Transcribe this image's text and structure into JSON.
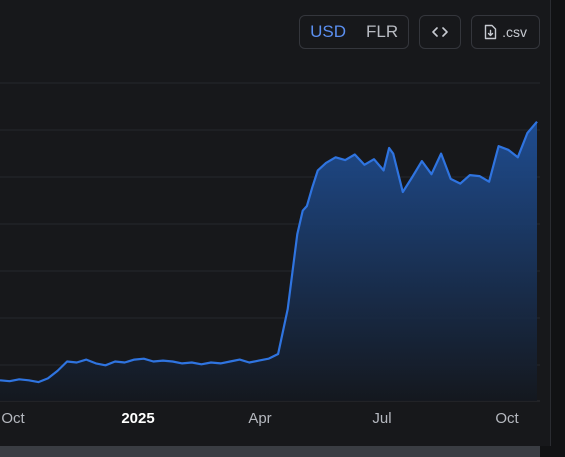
{
  "toolbar": {
    "currency_options": [
      "USD",
      "FLR"
    ],
    "active_currency": "USD",
    "embed_icon": "code-icon",
    "csv_icon": "file-download-icon",
    "csv_label": ".csv"
  },
  "colors": {
    "line": "#2f74e0",
    "area_top": "#1f4f96",
    "area_bottom": "#14181f",
    "background": "#17181b",
    "grid": "#26282d",
    "accent": "#5b8ff0"
  },
  "chart_data": {
    "type": "area",
    "title": "",
    "xlabel": "",
    "ylabel": "",
    "x_ticks": [
      "Oct",
      "2025",
      "Apr",
      "Jul",
      "Oct"
    ],
    "x_ticks_bold": [
      "2025"
    ],
    "grid": true,
    "series": [
      {
        "x": [
          "2024-09-20",
          "2024-09-27",
          "2024-10-04",
          "2024-10-11",
          "2024-10-18",
          "2024-10-25",
          "2024-11-01",
          "2024-11-08",
          "2024-11-15",
          "2024-11-22",
          "2024-11-29",
          "2024-12-06",
          "2024-12-13",
          "2024-12-20",
          "2024-12-27",
          "2025-01-03",
          "2025-01-10",
          "2025-01-17",
          "2025-01-24",
          "2025-01-31",
          "2025-02-07",
          "2025-02-14",
          "2025-02-21",
          "2025-02-28",
          "2025-03-07",
          "2025-03-14",
          "2025-03-21",
          "2025-03-28",
          "2025-04-04",
          "2025-04-11",
          "2025-04-18",
          "2025-04-25",
          "2025-04-29",
          "2025-05-02",
          "2025-05-06",
          "2025-05-10",
          "2025-05-16",
          "2025-05-23",
          "2025-05-30",
          "2025-06-06",
          "2025-06-13",
          "2025-06-20",
          "2025-06-27",
          "2025-07-01",
          "2025-07-04",
          "2025-07-11",
          "2025-07-18",
          "2025-07-25",
          "2025-08-01",
          "2025-08-08",
          "2025-08-15",
          "2025-08-22",
          "2025-08-29",
          "2025-09-05",
          "2025-09-12",
          "2025-09-19",
          "2025-09-26",
          "2025-10-03",
          "2025-10-10",
          "2025-10-17"
        ],
        "values": [
          0.4,
          0.3,
          0.5,
          0.4,
          0.2,
          0.6,
          1.4,
          2.4,
          2.3,
          2.6,
          2.2,
          2.0,
          2.4,
          2.3,
          2.6,
          2.7,
          2.4,
          2.5,
          2.4,
          2.2,
          2.3,
          2.1,
          2.3,
          2.2,
          2.4,
          2.6,
          2.3,
          2.5,
          2.7,
          3.2,
          8.0,
          16.0,
          18.5,
          19.0,
          21.0,
          22.8,
          23.6,
          24.2,
          23.9,
          24.5,
          23.4,
          24.0,
          22.8,
          25.2,
          24.6,
          20.5,
          22.1,
          23.8,
          22.4,
          24.6,
          21.9,
          21.4,
          22.3,
          22.2,
          21.6,
          25.4,
          25.0,
          24.2,
          26.8,
          28.0
        ]
      }
    ]
  }
}
